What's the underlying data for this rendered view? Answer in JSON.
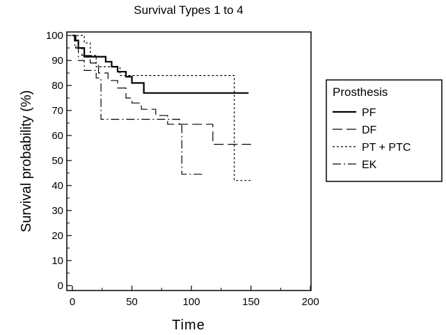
{
  "chart_data": {
    "type": "line",
    "step": true,
    "title": "Survival Types 1 to 4",
    "xlabel": "Time",
    "ylabel": "Survival probability (%)",
    "xlim": [
      0,
      200
    ],
    "ylim": [
      0,
      100
    ],
    "xticks": [
      "0",
      "50",
      "100",
      "150",
      "200"
    ],
    "yticks": [
      "0",
      "10",
      "20",
      "30",
      "40",
      "50",
      "60",
      "70",
      "80",
      "90",
      "100"
    ],
    "grid": false,
    "legend": {
      "title": "Prosthesis",
      "placement": "right, outside plot"
    },
    "series": [
      {
        "name": "PF",
        "style": "solid",
        "points": [
          [
            0,
            100
          ],
          [
            2,
            100
          ],
          [
            2,
            98
          ],
          [
            5,
            98
          ],
          [
            5,
            95
          ],
          [
            10,
            95
          ],
          [
            10,
            91.5
          ],
          [
            28,
            91.5
          ],
          [
            28,
            89.5
          ],
          [
            33,
            89.5
          ],
          [
            33,
            87.5
          ],
          [
            38,
            87.5
          ],
          [
            38,
            85.5
          ],
          [
            45,
            85.5
          ],
          [
            45,
            83.5
          ],
          [
            50,
            83.5
          ],
          [
            50,
            81
          ],
          [
            60,
            81
          ],
          [
            60,
            77
          ],
          [
            148,
            77
          ]
        ]
      },
      {
        "name": "DF",
        "style": "long-dash",
        "points": [
          [
            0,
            100
          ],
          [
            3,
            100
          ],
          [
            3,
            95
          ],
          [
            8,
            95
          ],
          [
            8,
            92
          ],
          [
            15,
            92
          ],
          [
            15,
            89
          ],
          [
            22,
            89
          ],
          [
            22,
            85
          ],
          [
            30,
            85
          ],
          [
            30,
            82
          ],
          [
            38,
            82
          ],
          [
            38,
            79
          ],
          [
            45,
            79
          ],
          [
            45,
            75
          ],
          [
            50,
            75
          ],
          [
            50,
            73
          ],
          [
            58,
            73
          ],
          [
            58,
            70.5
          ],
          [
            70,
            70.5
          ],
          [
            70,
            68
          ],
          [
            80,
            68
          ],
          [
            80,
            64.5
          ],
          [
            118,
            64.5
          ],
          [
            118,
            56.5
          ],
          [
            150,
            56.5
          ]
        ]
      },
      {
        "name": "PT + PTC",
        "style": "dotted",
        "points": [
          [
            0,
            100
          ],
          [
            10,
            100
          ],
          [
            10,
            97
          ],
          [
            15,
            97
          ],
          [
            15,
            92
          ],
          [
            20,
            92
          ],
          [
            20,
            87.5
          ],
          [
            40,
            87.5
          ],
          [
            40,
            84
          ],
          [
            136,
            84
          ],
          [
            136,
            42
          ],
          [
            150,
            42
          ]
        ]
      },
      {
        "name": "EK",
        "style": "dash-dot",
        "points": [
          [
            0,
            100
          ],
          [
            2,
            100
          ],
          [
            2,
            95
          ],
          [
            5,
            95
          ],
          [
            5,
            90
          ],
          [
            10,
            90
          ],
          [
            10,
            86
          ],
          [
            20,
            86
          ],
          [
            20,
            83
          ],
          [
            24,
            83
          ],
          [
            24,
            66.5
          ],
          [
            90,
            66.5
          ],
          [
            90,
            64.5
          ],
          [
            92,
            64.5
          ],
          [
            92,
            44.5
          ],
          [
            110,
            44.5
          ]
        ]
      }
    ]
  }
}
